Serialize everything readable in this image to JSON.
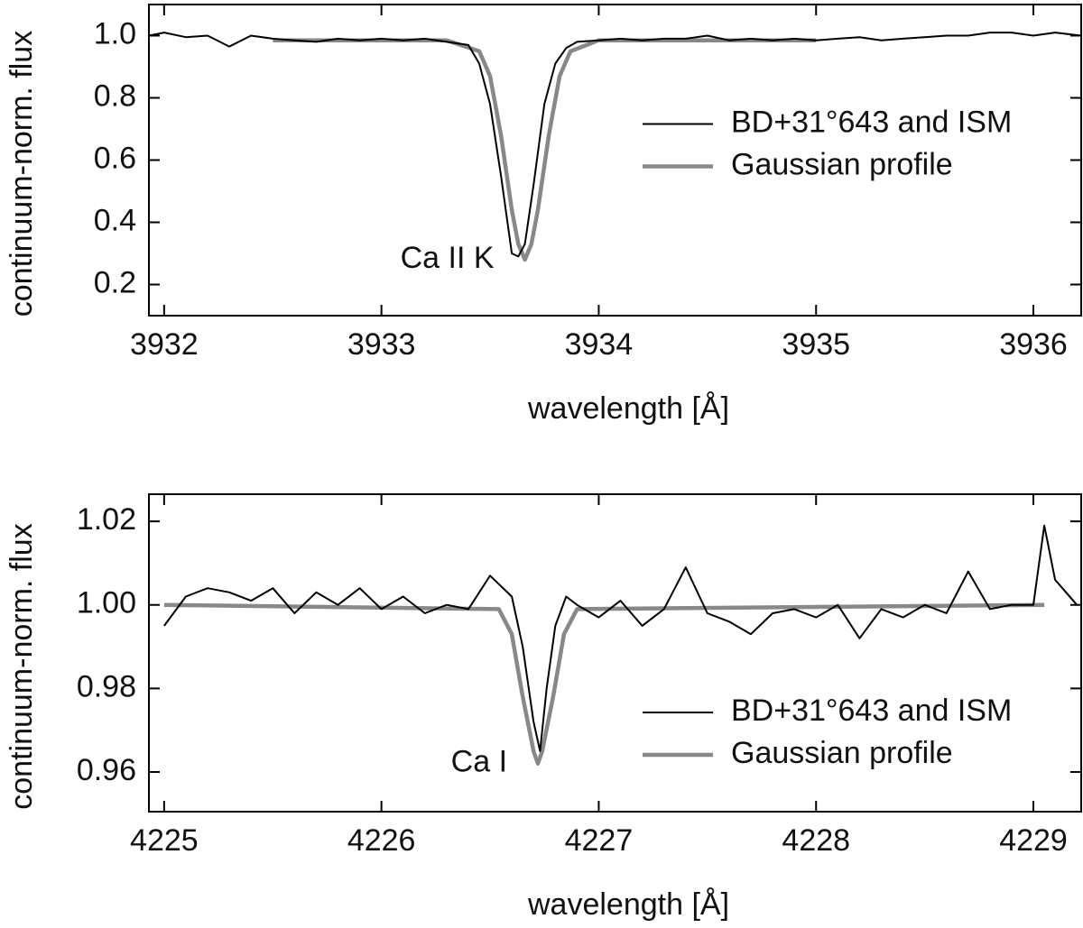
{
  "chart_data": [
    {
      "type": "line",
      "xlabel": "wavelength [Å]",
      "ylabel": "continuum-norm. flux",
      "annotation": "Ca II K",
      "xlim": [
        3931.93,
        3936.22
      ],
      "ylim": [
        0.1,
        1.1
      ],
      "xticks": [
        3932,
        3933,
        3934,
        3935,
        3936
      ],
      "yticks": [
        0.2,
        0.4,
        0.6,
        0.8,
        {
          "value": 1,
          "label": "1.0"
        }
      ],
      "legend": "center right",
      "series": [
        {
          "name": "BD+31°643 and ISM",
          "color": "#000000",
          "x": [
            3931.93,
            3932.0,
            3932.1,
            3932.2,
            3932.3,
            3932.4,
            3932.5,
            3932.6,
            3932.7,
            3932.8,
            3932.9,
            3933.0,
            3933.1,
            3933.2,
            3933.3,
            3933.4,
            3933.45,
            3933.5,
            3933.55,
            3933.6,
            3933.63,
            3933.66,
            3933.7,
            3933.75,
            3933.8,
            3933.85,
            3933.9,
            3934.0,
            3934.1,
            3934.2,
            3934.3,
            3934.4,
            3934.5,
            3934.6,
            3934.7,
            3934.8,
            3934.9,
            3935.0,
            3935.1,
            3935.2,
            3935.3,
            3935.4,
            3935.5,
            3935.6,
            3935.7,
            3935.8,
            3935.9,
            3936.0,
            3936.1,
            3936.22
          ],
          "values": [
            1.0,
            1.01,
            0.995,
            1.0,
            0.965,
            1.0,
            0.99,
            0.985,
            0.98,
            0.99,
            0.985,
            0.99,
            0.985,
            0.99,
            0.98,
            0.97,
            0.91,
            0.78,
            0.55,
            0.3,
            0.29,
            0.33,
            0.52,
            0.78,
            0.91,
            0.96,
            0.98,
            0.985,
            0.99,
            0.985,
            0.99,
            0.99,
            1.0,
            0.985,
            0.99,
            0.985,
            0.99,
            0.985,
            0.99,
            0.995,
            0.985,
            0.99,
            0.995,
            1.0,
            1.0,
            1.01,
            1.01,
            1.0,
            1.01,
            1.0
          ]
        },
        {
          "name": "Gaussian profile",
          "color": "#888888",
          "x": [
            3932.5,
            3933.3,
            3933.45,
            3933.5,
            3933.55,
            3933.6,
            3933.63,
            3933.66,
            3933.69,
            3933.72,
            3933.77,
            3933.82,
            3933.87,
            3934.0,
            3935.0
          ],
          "values": [
            0.985,
            0.985,
            0.95,
            0.87,
            0.68,
            0.44,
            0.33,
            0.28,
            0.33,
            0.44,
            0.68,
            0.87,
            0.95,
            0.985,
            0.985
          ]
        }
      ]
    },
    {
      "type": "line",
      "xlabel": "wavelength [Å]",
      "ylabel": "continuum-norm. flux",
      "annotation": "Ca I",
      "xlim": [
        4224.93,
        4229.22
      ],
      "ylim": [
        0.9505,
        1.0265
      ],
      "xticks": [
        4225,
        4226,
        4227,
        4228,
        4229
      ],
      "yticks": [
        0.96,
        0.98,
        {
          "value": 1,
          "label": "1.00"
        },
        1.02
      ],
      "legend": "lower right",
      "series": [
        {
          "name": "BD+31°643 and ISM",
          "color": "#000000",
          "x": [
            4225.0,
            4225.1,
            4225.2,
            4225.3,
            4225.4,
            4225.5,
            4225.6,
            4225.7,
            4225.8,
            4225.9,
            4226.0,
            4226.1,
            4226.2,
            4226.3,
            4226.4,
            4226.5,
            4226.6,
            4226.65,
            4226.7,
            4226.73,
            4226.76,
            4226.8,
            4226.85,
            4226.9,
            4227.0,
            4227.1,
            4227.2,
            4227.3,
            4227.4,
            4227.5,
            4227.6,
            4227.7,
            4227.8,
            4227.9,
            4228.0,
            4228.1,
            4228.2,
            4228.3,
            4228.4,
            4228.5,
            4228.6,
            4228.7,
            4228.8,
            4228.9,
            4229.0,
            4229.05,
            4229.1,
            4229.2
          ],
          "values": [
            0.995,
            1.002,
            1.004,
            1.003,
            1.001,
            1.004,
            0.998,
            1.003,
            1.0,
            1.004,
            0.999,
            1.002,
            0.998,
            1.0,
            0.999,
            1.007,
            1.002,
            0.99,
            0.972,
            0.965,
            0.98,
            0.995,
            1.002,
            1.0,
            0.997,
            1.001,
            0.995,
            0.999,
            1.009,
            0.998,
            0.996,
            0.993,
            0.998,
            0.999,
            0.997,
            1.0,
            0.992,
            0.999,
            0.997,
            1.0,
            0.998,
            1.008,
            0.999,
            1.0,
            1.0,
            1.019,
            1.006,
            1.0
          ]
        },
        {
          "name": "Gaussian profile",
          "color": "#888888",
          "x": [
            4225.0,
            4226.54,
            4226.6,
            4226.65,
            4226.7,
            4226.72,
            4226.74,
            4226.79,
            4226.84,
            4226.9,
            4229.05
          ],
          "values": [
            1.0,
            0.999,
            0.993,
            0.978,
            0.965,
            0.962,
            0.965,
            0.978,
            0.993,
            0.999,
            1.0
          ]
        }
      ]
    }
  ]
}
